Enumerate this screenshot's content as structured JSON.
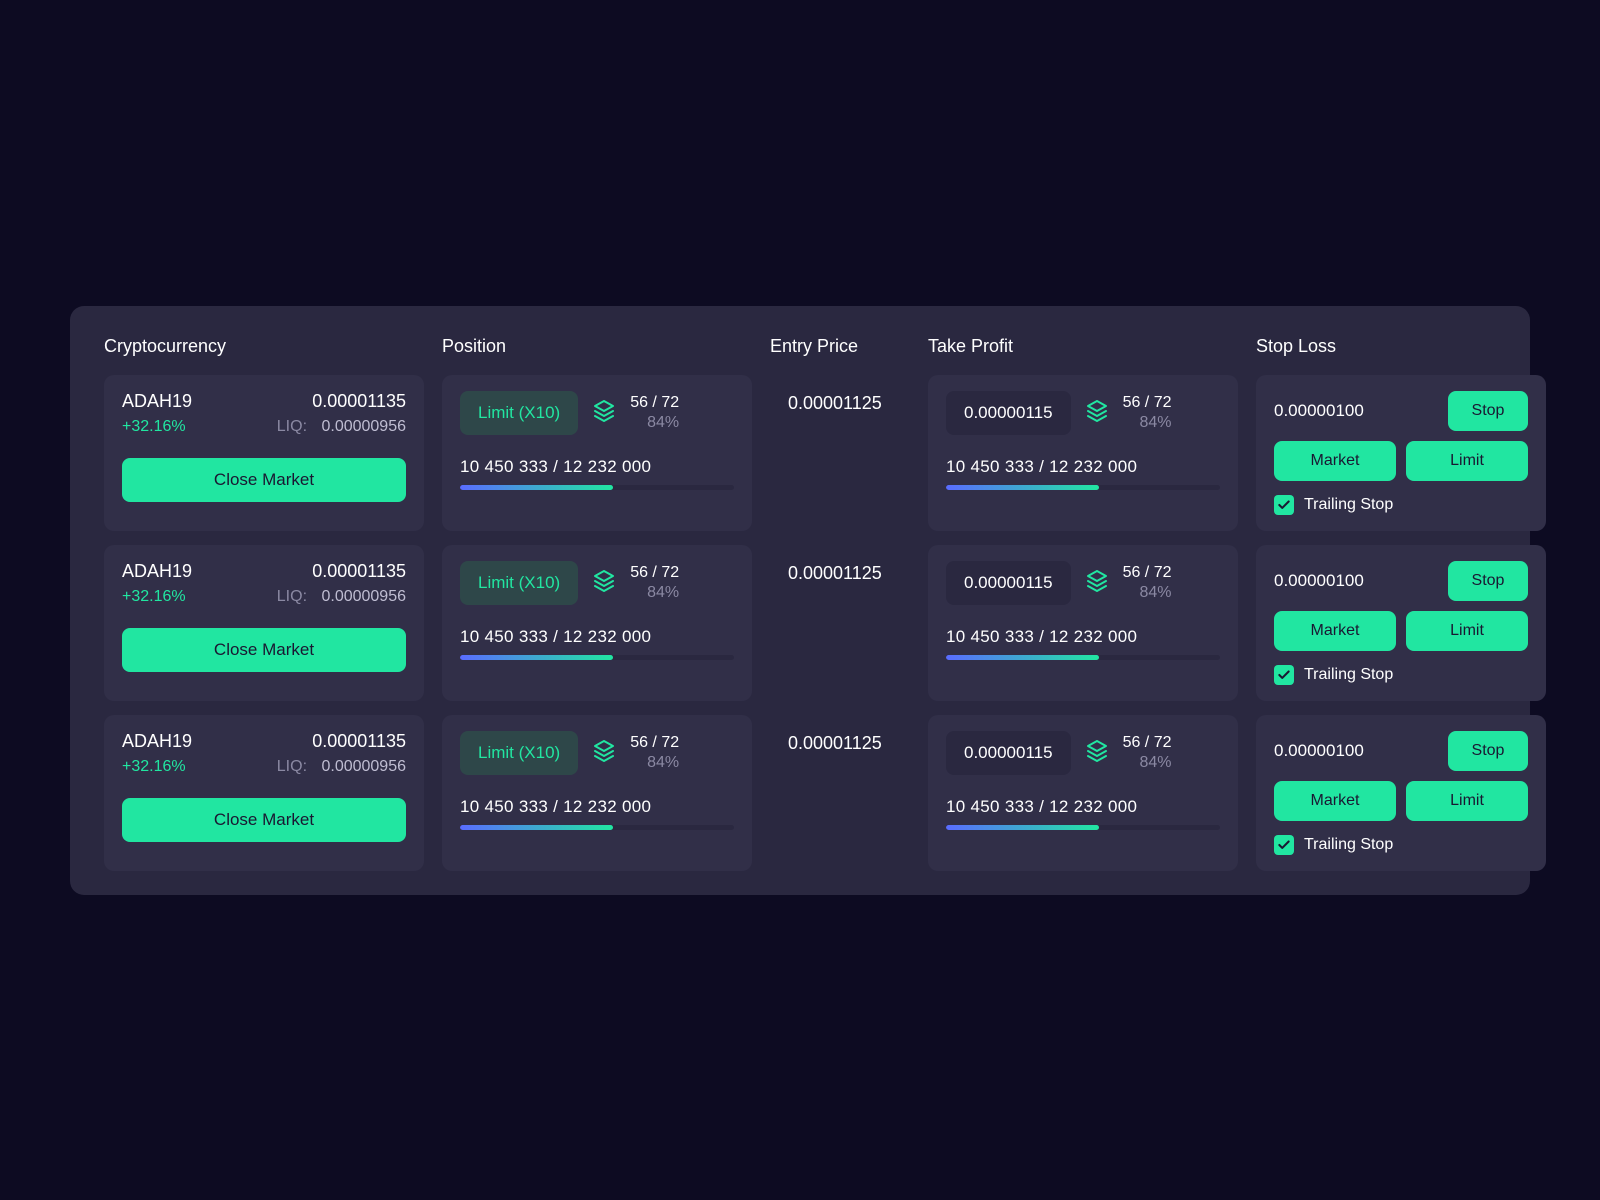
{
  "colors": {
    "page_bg": "#0d0b22",
    "panel_bg": "#2a2840",
    "cell_bg": "#312f48",
    "accent": "#21e6a1",
    "text": "#ffffff",
    "muted": "#8b89a3",
    "progress_gradient_start": "#5a6cff",
    "progress_gradient_end": "#21e6a1"
  },
  "headers": {
    "cryptocurrency": "Cryptocurrency",
    "position": "Position",
    "entry_price": "Entry Price",
    "take_profit": "Take Profit",
    "stop_loss": "Stop Loss"
  },
  "rows": [
    {
      "symbol": "ADAH19",
      "price": "0.00001135",
      "change_pct": "+32.16%",
      "liq_label": "LIQ:",
      "liq_value": "0.00000956",
      "close_market_label": "Close Market",
      "position": {
        "pill": "Limit (X10)",
        "ratio": "56 / 72",
        "pct": "84%",
        "amount_line": "10 450 333 / 12 232 000",
        "progress_pct": 56
      },
      "entry_price": "0.00001125",
      "take_profit": {
        "pill": "0.00000115",
        "ratio": "56 / 72",
        "pct": "84%",
        "amount_line": "10 450 333 / 12 232 000",
        "progress_pct": 56
      },
      "stop_loss": {
        "value": "0.00000100",
        "stop_label": "Stop",
        "market_label": "Market",
        "limit_label": "Limit",
        "trailing_label": "Trailing Stop",
        "trailing_checked": true
      }
    },
    {
      "symbol": "ADAH19",
      "price": "0.00001135",
      "change_pct": "+32.16%",
      "liq_label": "LIQ:",
      "liq_value": "0.00000956",
      "close_market_label": "Close Market",
      "position": {
        "pill": "Limit (X10)",
        "ratio": "56 / 72",
        "pct": "84%",
        "amount_line": "10 450 333 / 12 232 000",
        "progress_pct": 56
      },
      "entry_price": "0.00001125",
      "take_profit": {
        "pill": "0.00000115",
        "ratio": "56 / 72",
        "pct": "84%",
        "amount_line": "10 450 333 / 12 232 000",
        "progress_pct": 56
      },
      "stop_loss": {
        "value": "0.00000100",
        "stop_label": "Stop",
        "market_label": "Market",
        "limit_label": "Limit",
        "trailing_label": "Trailing Stop",
        "trailing_checked": true
      }
    },
    {
      "symbol": "ADAH19",
      "price": "0.00001135",
      "change_pct": "+32.16%",
      "liq_label": "LIQ:",
      "liq_value": "0.00000956",
      "close_market_label": "Close Market",
      "position": {
        "pill": "Limit (X10)",
        "ratio": "56 / 72",
        "pct": "84%",
        "amount_line": "10 450 333 / 12 232 000",
        "progress_pct": 56
      },
      "entry_price": "0.00001125",
      "take_profit": {
        "pill": "0.00000115",
        "ratio": "56 / 72",
        "pct": "84%",
        "amount_line": "10 450 333 / 12 232 000",
        "progress_pct": 56
      },
      "stop_loss": {
        "value": "0.00000100",
        "stop_label": "Stop",
        "market_label": "Market",
        "limit_label": "Limit",
        "trailing_label": "Trailing Stop",
        "trailing_checked": true
      }
    }
  ]
}
